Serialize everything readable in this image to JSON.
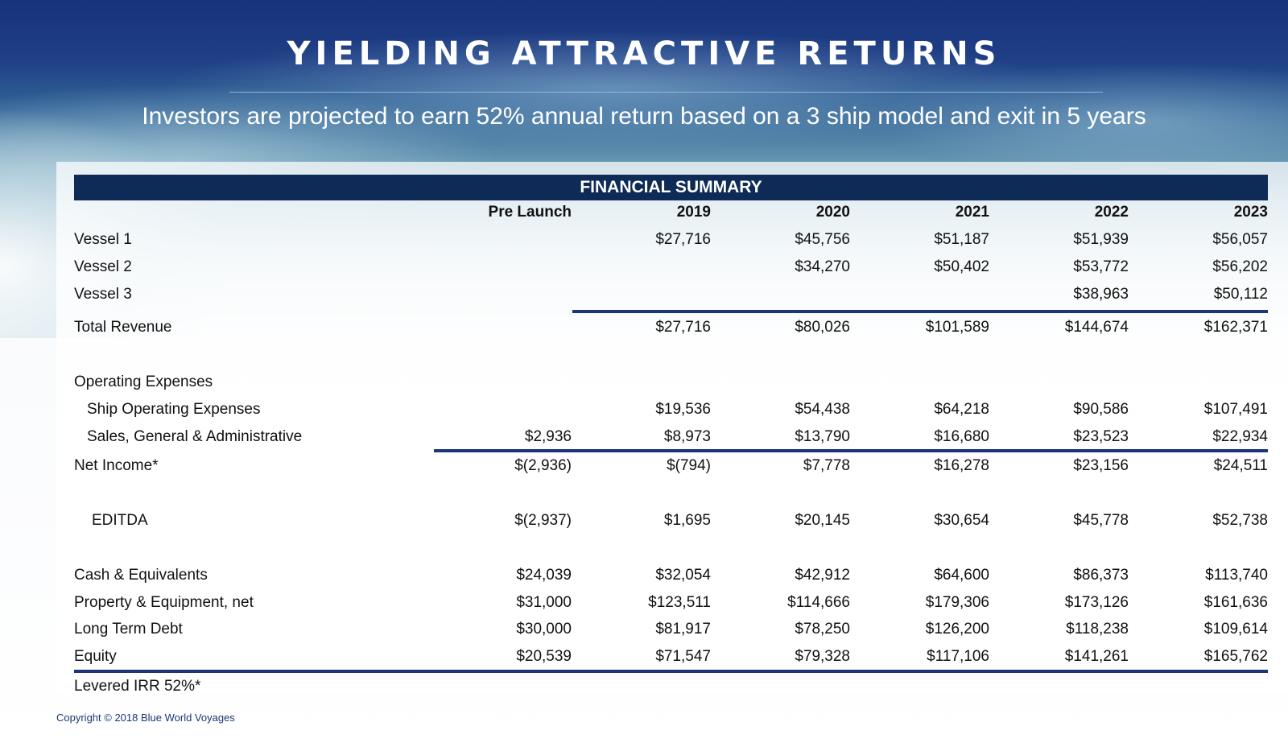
{
  "title": "YIELDING ATTRACTIVE RETURNS",
  "subtitle": "Investors are projected to earn 52% annual return based on a 3 ship model and exit in 5 years",
  "table": {
    "heading": "FINANCIAL SUMMARY",
    "columns": [
      "Pre Launch",
      "2019",
      "2020",
      "2021",
      "2022",
      "2023"
    ],
    "rows": {
      "vessel1": {
        "label": "Vessel 1",
        "values": [
          "",
          "$27,716",
          "$45,756",
          "$51,187",
          "$51,939",
          "$56,057"
        ]
      },
      "vessel2": {
        "label": "Vessel 2",
        "values": [
          "",
          "",
          "$34,270",
          "$50,402",
          "$53,772",
          "$56,202"
        ]
      },
      "vessel3": {
        "label": "Vessel 3",
        "values": [
          "",
          "",
          "",
          "",
          "$38,963",
          "$50,112"
        ]
      },
      "total_revenue": {
        "label": "Total Revenue",
        "values": [
          "",
          "$27,716",
          "$80,026",
          "$101,589",
          "$144,674",
          "$162,371"
        ]
      },
      "operating_expenses": {
        "label": "Operating Expenses"
      },
      "ship_opex": {
        "label": "Ship Operating Expenses",
        "values": [
          "",
          "$19,536",
          "$54,438",
          "$64,218",
          "$90,586",
          "$107,491"
        ]
      },
      "sga": {
        "label": "Sales, General & Administrative",
        "values": [
          "$2,936",
          "$8,973",
          "$13,790",
          "$16,680",
          "$23,523",
          "$22,934"
        ]
      },
      "net_income": {
        "label": "Net Income*",
        "values": [
          "$(2,936)",
          "$(794)",
          "$7,778",
          "$16,278",
          "$23,156",
          "$24,511"
        ]
      },
      "editda": {
        "label": "EDITDA",
        "values": [
          "$(2,937)",
          "$1,695",
          "$20,145",
          "$30,654",
          "$45,778",
          "$52,738"
        ]
      },
      "cash": {
        "label": "Cash & Equivalents",
        "values": [
          "$24,039",
          "$32,054",
          "$42,912",
          "$64,600",
          "$86,373",
          "$113,740"
        ]
      },
      "ppe": {
        "label": "Property & Equipment, net",
        "values": [
          "$31,000",
          "$123,511",
          "$114,666",
          "$179,306",
          "$173,126",
          "$161,636"
        ]
      },
      "ltd": {
        "label": "Long Term Debt",
        "values": [
          "$30,000",
          "$81,917",
          "$78,250",
          "$126,200",
          "$118,238",
          "$109,614"
        ]
      },
      "equity": {
        "label": "Equity",
        "values": [
          "$20,539",
          "$71,547",
          "$79,328",
          "$117,106",
          "$141,261",
          "$165,762"
        ]
      },
      "irr": {
        "label": "Levered IRR 52%*"
      }
    }
  },
  "footer": {
    "copyright": "Copyright © 2018  Blue World Voyages"
  },
  "colors": {
    "navy": "#0e2b57",
    "rule": "#1b3575"
  }
}
